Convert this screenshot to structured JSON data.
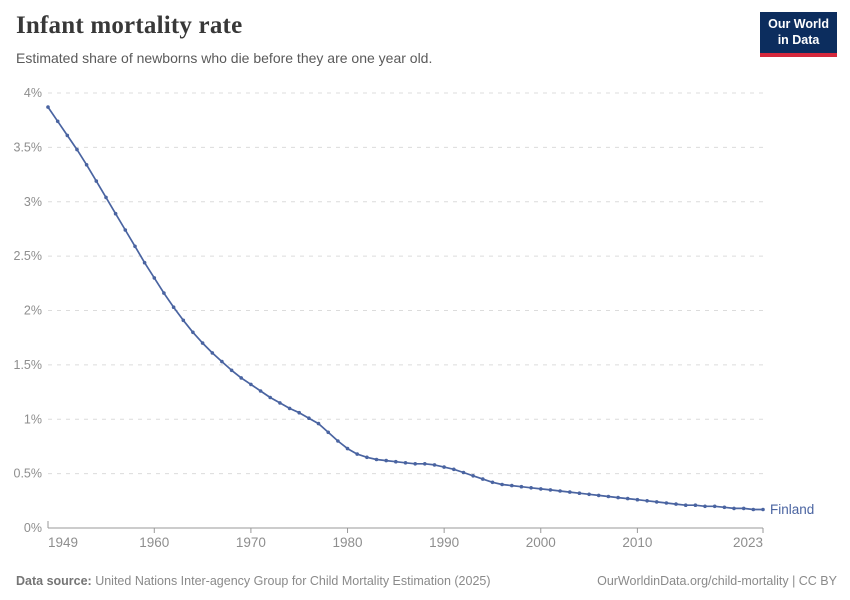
{
  "header": {
    "title": "Infant mortality rate",
    "subtitle": "Estimated share of newborns who die before they are one year old.",
    "logo": {
      "line1": "Our World",
      "line2": "in Data"
    }
  },
  "footer": {
    "source_label": "Data source:",
    "source_text": " United Nations Inter-agency Group for Child Mortality Estimation (2025)",
    "link_text": "OurWorldinData.org/child-mortality | CC BY"
  },
  "colors": {
    "series_line": "#4a64a1",
    "entity_label": "#4a64a1",
    "gridline": "#dcdcdc",
    "axis_line": "#999999",
    "tick_label": "#8e8e8e",
    "logo_bg": "#0c2d5e",
    "logo_stripe": "#d5283c"
  },
  "chart_data": {
    "type": "line",
    "title": "Infant mortality rate",
    "subtitle": "Estimated share of newborns who die before they are one year old.",
    "entity_label": "Finland",
    "unit": "%",
    "xlim": [
      1949,
      2023
    ],
    "ylim": [
      0,
      4
    ],
    "grid": "horizontal-dashed",
    "legend_position": "end-of-line",
    "x_ticks": [
      1949,
      1960,
      1970,
      1980,
      1990,
      2000,
      2010,
      2023
    ],
    "y_ticks": [
      {
        "value": 0,
        "label": "0%"
      },
      {
        "value": 0.5,
        "label": "0.5%"
      },
      {
        "value": 1,
        "label": "1%"
      },
      {
        "value": 1.5,
        "label": "1.5%"
      },
      {
        "value": 2,
        "label": "2%"
      },
      {
        "value": 2.5,
        "label": "2.5%"
      },
      {
        "value": 3,
        "label": "3%"
      },
      {
        "value": 3.5,
        "label": "3.5%"
      },
      {
        "value": 4,
        "label": "4%"
      }
    ],
    "series": [
      {
        "name": "Finland",
        "color": "#4a64a1",
        "x": [
          1949,
          1950,
          1951,
          1952,
          1953,
          1954,
          1955,
          1956,
          1957,
          1958,
          1959,
          1960,
          1961,
          1962,
          1963,
          1964,
          1965,
          1966,
          1967,
          1968,
          1969,
          1970,
          1971,
          1972,
          1973,
          1974,
          1975,
          1976,
          1977,
          1978,
          1979,
          1980,
          1981,
          1982,
          1983,
          1984,
          1985,
          1986,
          1987,
          1988,
          1989,
          1990,
          1991,
          1992,
          1993,
          1994,
          1995,
          1996,
          1997,
          1998,
          1999,
          2000,
          2001,
          2002,
          2003,
          2004,
          2005,
          2006,
          2007,
          2008,
          2009,
          2010,
          2011,
          2012,
          2013,
          2014,
          2015,
          2016,
          2017,
          2018,
          2019,
          2020,
          2021,
          2022,
          2023
        ],
        "values": [
          3.87,
          3.74,
          3.61,
          3.48,
          3.34,
          3.19,
          3.04,
          2.89,
          2.74,
          2.59,
          2.44,
          2.3,
          2.16,
          2.03,
          1.91,
          1.8,
          1.7,
          1.61,
          1.53,
          1.45,
          1.38,
          1.32,
          1.26,
          1.2,
          1.15,
          1.1,
          1.06,
          1.01,
          0.96,
          0.88,
          0.8,
          0.73,
          0.68,
          0.65,
          0.63,
          0.62,
          0.61,
          0.6,
          0.59,
          0.59,
          0.58,
          0.56,
          0.54,
          0.51,
          0.48,
          0.45,
          0.42,
          0.4,
          0.39,
          0.38,
          0.37,
          0.36,
          0.35,
          0.34,
          0.33,
          0.32,
          0.31,
          0.3,
          0.29,
          0.28,
          0.27,
          0.26,
          0.25,
          0.24,
          0.23,
          0.22,
          0.21,
          0.21,
          0.2,
          0.2,
          0.19,
          0.18,
          0.18,
          0.17,
          0.17
        ]
      }
    ]
  }
}
